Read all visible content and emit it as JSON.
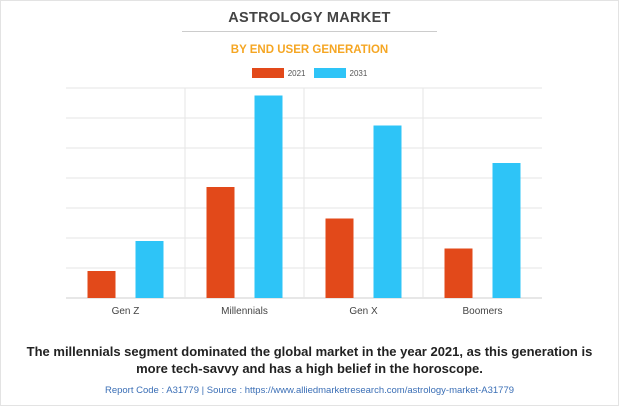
{
  "chart_data": {
    "type": "bar",
    "title": "ASTROLOGY MARKET",
    "subtitle": "BY END USER GENERATION",
    "categories": [
      "Gen Z",
      "Millennials",
      "Gen X",
      "Boomers"
    ],
    "series": [
      {
        "name": "2021",
        "color": "#e2491a",
        "values": [
          0.9,
          3.7,
          2.65,
          1.65
        ]
      },
      {
        "name": "2031",
        "color": "#2ec4f7",
        "values": [
          1.9,
          6.75,
          5.75,
          4.5
        ]
      }
    ],
    "ylim": [
      0,
      7
    ],
    "grid": true,
    "legend": "top-center",
    "xlabel": "",
    "ylabel": ""
  },
  "caption": {
    "line1": "The millennials segment dominated the global market in the year 2021, as this generation is",
    "line2": "more tech-savvy and has a high belief in the horoscope."
  },
  "source": "Report Code : A31779  |  Source : https://www.alliedmarketresearch.com/astrology-market-A31779"
}
